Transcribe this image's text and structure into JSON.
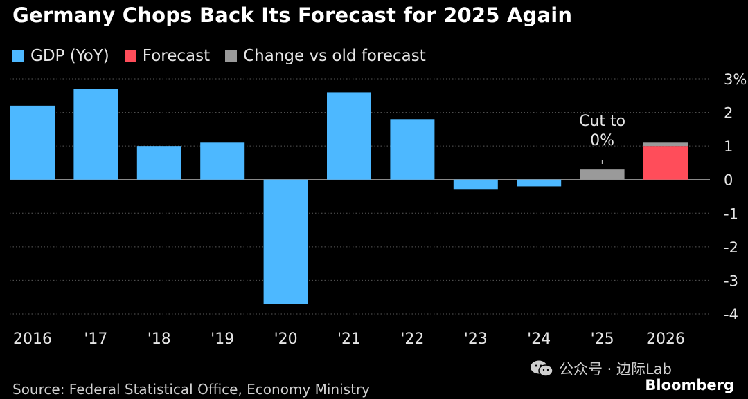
{
  "title": "Germany Chops Back Its Forecast for 2025 Again",
  "legend": [
    {
      "label": "GDP (YoY)",
      "color": "#4db8ff"
    },
    {
      "label": "Forecast",
      "color": "#ff4d5a"
    },
    {
      "label": "Change vs old forecast",
      "color": "#9a9a9a"
    }
  ],
  "chart_data": {
    "type": "bar",
    "categories": [
      "2016",
      "'17",
      "'18",
      "'19",
      "'20",
      "'21",
      "'22",
      "'23",
      "'24",
      "'25",
      "2026"
    ],
    "series": [
      {
        "name": "GDP (YoY)",
        "color": "#4db8ff",
        "values": [
          2.2,
          2.7,
          1.0,
          1.1,
          -3.7,
          2.6,
          1.8,
          -0.3,
          -0.2,
          null,
          null
        ]
      },
      {
        "name": "Forecast",
        "color": "#ff4d5a",
        "values": [
          null,
          null,
          null,
          null,
          null,
          null,
          null,
          null,
          null,
          0.0,
          1.0
        ]
      },
      {
        "name": "Change vs old forecast",
        "color": "#9a9a9a",
        "values": [
          null,
          null,
          null,
          null,
          null,
          null,
          null,
          null,
          null,
          0.3,
          0.1
        ]
      }
    ],
    "ylim": [
      -4,
      3
    ],
    "yticks": [
      3,
      2,
      1,
      0,
      -1,
      -2,
      -3,
      -4
    ],
    "ytick_labels": [
      "3%",
      "2",
      "1",
      "0",
      "-1",
      "-2",
      "-3",
      "-4"
    ],
    "grid": true,
    "annotation": {
      "category": "'25",
      "text_lines": [
        "Cut to",
        "0%"
      ]
    }
  },
  "source": "Source: Federal Statistical Office, Economy Ministry",
  "brand": "Bloomberg",
  "watermark": "公众号 · 边际Lab"
}
